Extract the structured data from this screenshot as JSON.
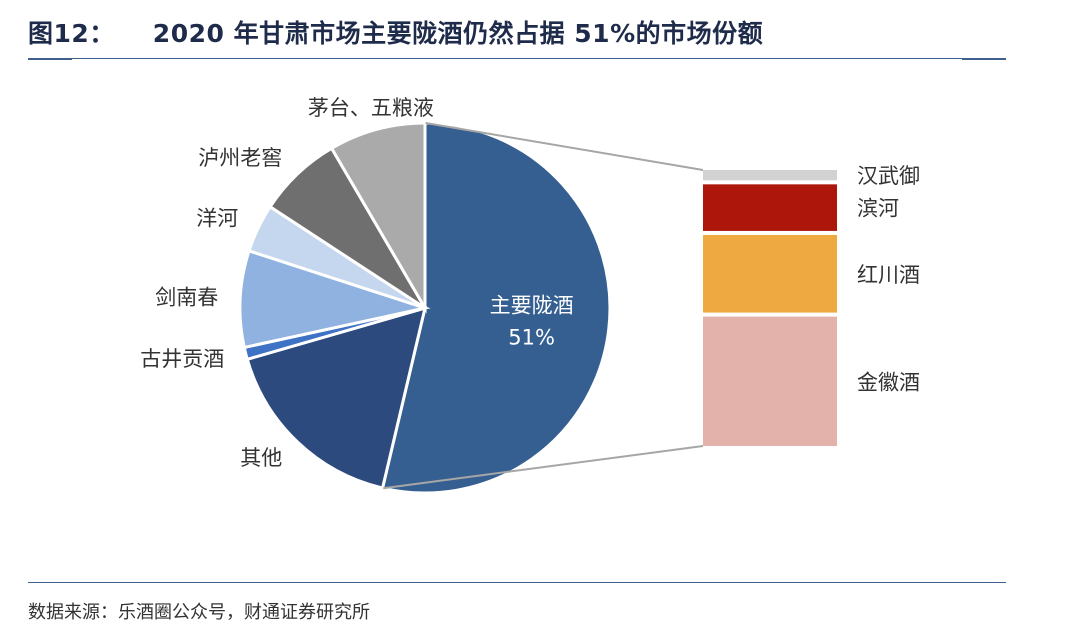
{
  "header": {
    "figure_number": "图12：",
    "title_text": "2020 年甘肃市场主要陇酒仍然占据 51%的市场份额"
  },
  "footer": {
    "source": "数据来源：乐酒圈公众号，财通证券研究所"
  },
  "chart_data": {
    "type": "pie",
    "title": "2020 年甘肃市场主要陇酒仍然占据 51%的市场份额",
    "slices": [
      {
        "name": "主要陇酒",
        "value": 51,
        "color": "#355f91",
        "label": "主要陇酒",
        "value_label": "51%"
      },
      {
        "name": "其他",
        "value": 16,
        "color": "#2d4a7f",
        "label": "其他"
      },
      {
        "name": "古井贡酒",
        "value": 1,
        "color": "#3e72c4",
        "label": "古井贡酒"
      },
      {
        "name": "剑南春",
        "value": 8,
        "color": "#8fb2e0",
        "label": "剑南春"
      },
      {
        "name": "洋河",
        "value": 4,
        "color": "#c5d7ef",
        "label": "洋河"
      },
      {
        "name": "泸州老窖",
        "value": 7,
        "color": "#6f6f6f",
        "label": "泸州老窖"
      },
      {
        "name": "茅台、五粮液",
        "value": 8,
        "color": "#aaaaaa",
        "label": "茅台、五粮液"
      }
    ],
    "breakdown": {
      "parent": "主要陇酒",
      "type": "stacked-bar",
      "segments": [
        {
          "name": "汉武御",
          "value": 2,
          "color": "#d2d2d2"
        },
        {
          "name": "滨河",
          "value": 9,
          "color": "#ad160b"
        },
        {
          "name": "红川酒",
          "value": 15,
          "color": "#eeaa40"
        },
        {
          "name": "金徽酒",
          "value": 25,
          "color": "#e3b3ab"
        }
      ]
    },
    "legend": "none"
  }
}
